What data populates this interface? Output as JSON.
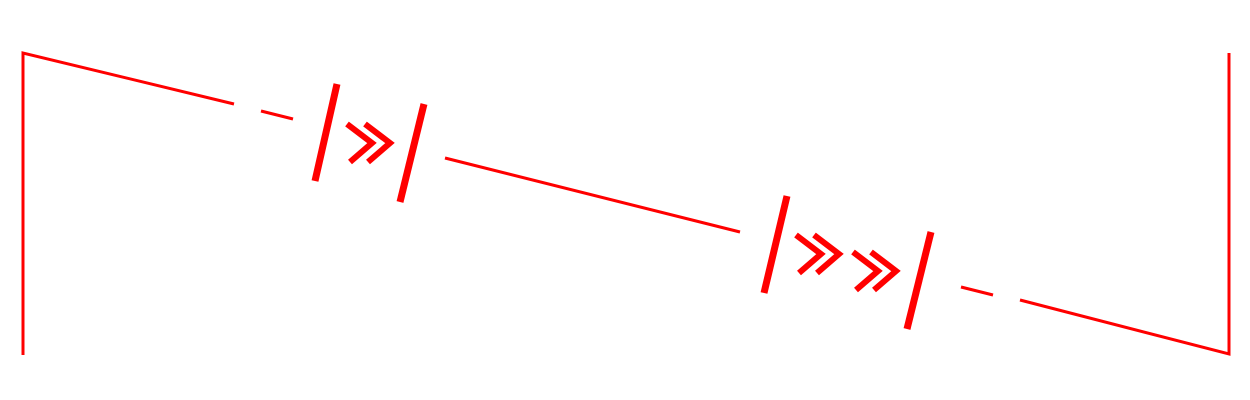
{
  "diagram": {
    "type": "line-symbol-schematic",
    "description_free": true,
    "stroke_color": "#ff0000",
    "background_color": "#ffffff",
    "symbols": [
      {
        "name": "single-chevron-marker",
        "chevron_count": 1,
        "icon": "double-angle-right-icon"
      },
      {
        "name": "double-chevron-marker",
        "chevron_count": 2,
        "icon": "double-angle-right-icon"
      }
    ]
  }
}
